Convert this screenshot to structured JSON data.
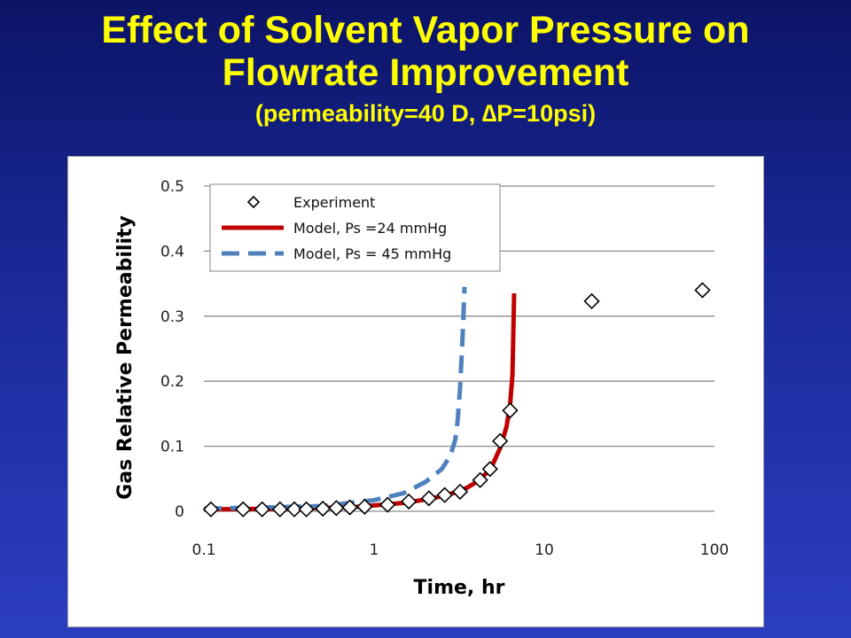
{
  "slide": {
    "title_line1": "Effect of Solvent Vapor Pressure on",
    "title_line2": "Flowrate Improvement",
    "title_line3": "(permeability=40 D, ∆P=10psi)"
  },
  "chart_data": {
    "type": "scatter",
    "title": "",
    "xlabel": "Time, hr",
    "ylabel": "Gas Relative Permeability",
    "x_scale": "log",
    "xlim": [
      0.1,
      100
    ],
    "ylim": [
      0,
      0.5
    ],
    "x_ticks": [
      "0.1",
      "1",
      "10",
      "100"
    ],
    "y_ticks": [
      "0",
      "0.1",
      "0.2",
      "0.3",
      "0.4",
      "0.5"
    ],
    "grid": "horizontal",
    "legend_position": "top-left",
    "series": [
      {
        "name": "Experiment",
        "kind": "markers",
        "marker": "diamond",
        "color": "#000000",
        "x": [
          0.11,
          0.17,
          0.22,
          0.28,
          0.34,
          0.4,
          0.5,
          0.6,
          0.72,
          0.88,
          1.2,
          1.6,
          2.1,
          2.6,
          3.2,
          4.2,
          4.8,
          5.5,
          6.3,
          19,
          85
        ],
        "y": [
          0.003,
          0.003,
          0.003,
          0.003,
          0.003,
          0.003,
          0.004,
          0.005,
          0.006,
          0.007,
          0.01,
          0.015,
          0.02,
          0.025,
          0.03,
          0.048,
          0.065,
          0.108,
          0.155,
          0.323,
          0.34
        ]
      },
      {
        "name": "Model, Ps =24 mmHg",
        "kind": "line",
        "style": "solid",
        "color": "#c00000",
        "x": [
          0.1,
          0.3,
          0.5,
          0.8,
          1.0,
          1.5,
          2.0,
          2.5,
          3.0,
          3.5,
          4.0,
          4.5,
          5.0,
          5.5,
          6.0,
          6.3,
          6.5,
          6.65
        ],
        "y": [
          0.003,
          0.004,
          0.005,
          0.007,
          0.009,
          0.013,
          0.018,
          0.023,
          0.029,
          0.036,
          0.045,
          0.057,
          0.073,
          0.097,
          0.13,
          0.165,
          0.21,
          0.335
        ]
      },
      {
        "name": "Model, Ps = 45 mmHg",
        "kind": "line",
        "style": "dashed",
        "color": "#4f81bd",
        "x": [
          0.1,
          0.5,
          1.0,
          1.5,
          2.0,
          2.5,
          2.8,
          3.0,
          3.1,
          3.2,
          3.3,
          3.35,
          3.4
        ],
        "y": [
          0.004,
          0.008,
          0.017,
          0.028,
          0.045,
          0.065,
          0.085,
          0.11,
          0.14,
          0.19,
          0.26,
          0.3,
          0.345
        ]
      }
    ]
  }
}
